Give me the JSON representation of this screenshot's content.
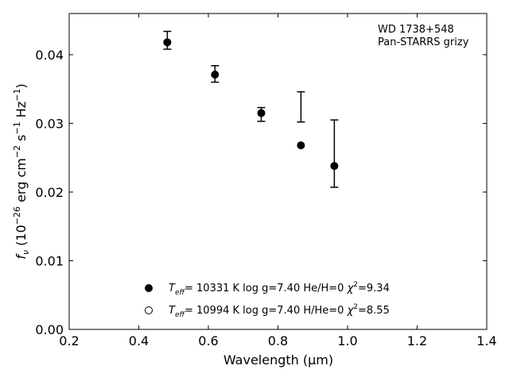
{
  "chart_data": {
    "type": "scatter",
    "title": "",
    "xlabel": "Wavelength (μm)",
    "ylabel_parts": [
      "f",
      "ν",
      " (10",
      "−26",
      " erg cm",
      "−2",
      " s",
      "−1",
      " Hz",
      "−1",
      ")"
    ],
    "xlim": [
      0.2,
      1.4
    ],
    "ylim": [
      0.0,
      0.046
    ],
    "xticks": [
      0.2,
      0.4,
      0.6,
      0.8,
      1.0,
      1.2,
      1.4
    ],
    "xtick_labels": [
      "0.2",
      "0.4",
      "0.6",
      "0.8",
      "1.0",
      "1.2",
      "1.4"
    ],
    "yticks": [
      0.0,
      0.01,
      0.02,
      0.03,
      0.04
    ],
    "ytick_labels": [
      "0.00",
      "0.01",
      "0.02",
      "0.03",
      "0.04"
    ],
    "grid": false,
    "annotation": [
      "WD 1738+548",
      "Pan-STARRS grizy"
    ],
    "observed": {
      "x": [
        0.482,
        0.619,
        0.752,
        0.866,
        0.962
      ],
      "y": [
        0.0421,
        0.0372,
        0.0313,
        0.0324,
        0.0256
      ],
      "yerr": [
        0.0013,
        0.0012,
        0.001,
        0.0022,
        0.0049
      ]
    },
    "series": [
      {
        "marker": "filled",
        "legend": {
          "T": "T",
          "eff": "eff",
          "rest": "= 10331 K  log g=7.40  He/H=0  ",
          "chi": "χ",
          "two": "2",
          "val": "=9.34"
        },
        "x": [
          0.482,
          0.619,
          0.752,
          0.866,
          0.962
        ],
        "y": [
          0.0418,
          0.0371,
          0.0315,
          0.0268,
          0.0238
        ]
      },
      {
        "marker": "open",
        "legend": {
          "T": "T",
          "eff": "eff",
          "rest": "= 10994 K  log g=7.40  H/He=0  ",
          "chi": "χ",
          "two": "2",
          "val": "=8.55"
        },
        "x": [],
        "y": []
      }
    ]
  }
}
